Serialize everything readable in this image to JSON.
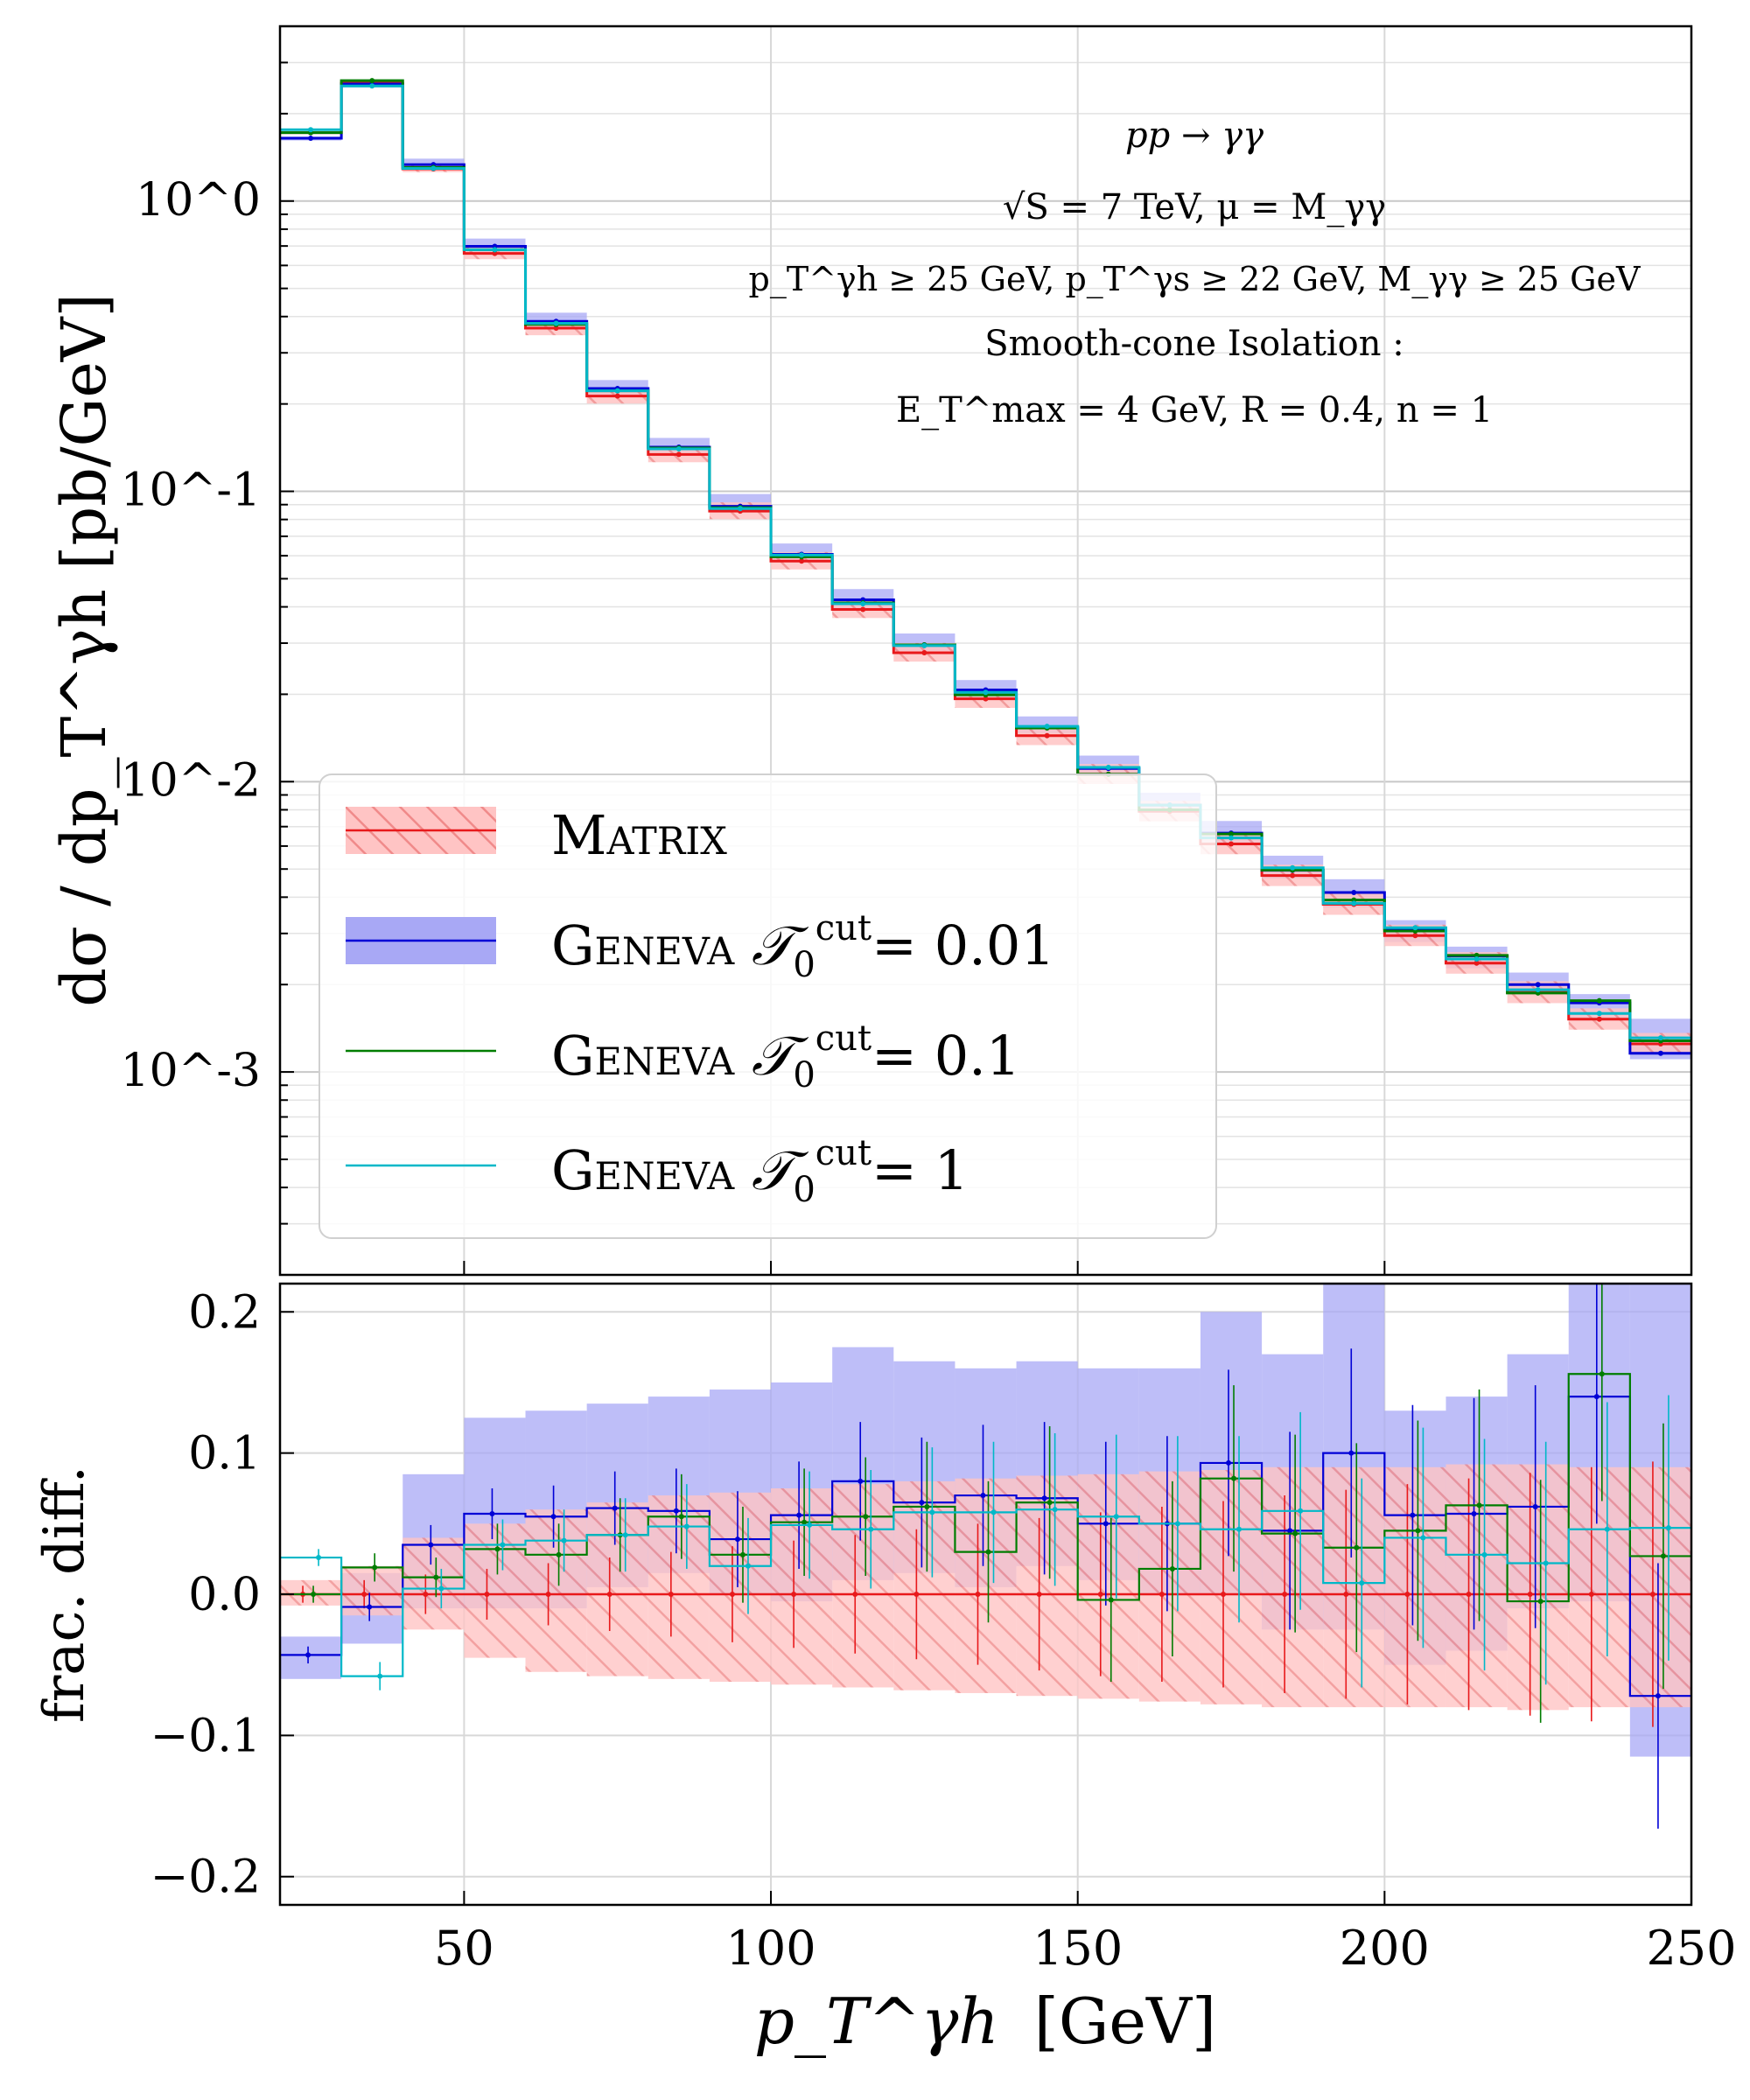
{
  "chart_data": {
    "type": "line",
    "bin_edges": [
      20,
      30,
      40,
      50,
      60,
      70,
      80,
      90,
      100,
      110,
      120,
      130,
      140,
      150,
      160,
      170,
      180,
      190,
      200,
      210,
      220,
      230,
      240,
      250
    ],
    "top_panel": {
      "ylabel": "dσ / dp_T^γh  [pb/GeV]",
      "yscale": "log",
      "ylim": [
        0.0002,
        4.0
      ],
      "y_tick_labels": [
        "10^0",
        "10^-1",
        "10^-2",
        "10^-3"
      ],
      "annotations": [
        "pp → γγ",
        "√S = 7 TeV, μ = M_γγ",
        "p_T^γh ≥ 25 GeV,  p_T^γs ≥ 22 GeV,  M_γγ ≥ 25 GeV",
        "Smooth-cone Isolation :",
        "E_T^max = 4 GeV,  R = 0.4,  n = 1"
      ],
      "legend_position": "lower-left",
      "series": [
        {
          "name": "Matrix",
          "color": "#e8191b",
          "band_color": "#ff8a8a",
          "band_hatched": true,
          "values": [
            1.72,
            2.55,
            1.29,
            0.66,
            0.365,
            0.213,
            0.134,
            0.0855,
            0.0575,
            0.0392,
            0.0278,
            0.0193,
            0.0144,
            0.0106,
            0.0079,
            0.0061,
            0.00475,
            0.00378,
            0.00295,
            0.00237,
            0.00188,
            0.00152,
            0.00125
          ],
          "rel_err_low": [
            0.008,
            0.015,
            0.025,
            0.045,
            0.055,
            0.058,
            0.06,
            0.062,
            0.064,
            0.066,
            0.068,
            0.07,
            0.072,
            0.074,
            0.076,
            0.078,
            0.08,
            0.08,
            0.08,
            0.08,
            0.082,
            0.08,
            0.08
          ],
          "rel_err_high": [
            0.01,
            0.02,
            0.04,
            0.05,
            0.06,
            0.065,
            0.07,
            0.072,
            0.075,
            0.078,
            0.08,
            0.082,
            0.084,
            0.085,
            0.087,
            0.088,
            0.09,
            0.09,
            0.09,
            0.092,
            0.092,
            0.09,
            0.09
          ]
        },
        {
          "name": "Geneva T0cut = 0.01",
          "color": "#0000d6",
          "band_color": "#a8a8f5",
          "values": [
            1.645,
            2.53,
            1.335,
            0.698,
            0.385,
            0.226,
            0.142,
            0.0888,
            0.0607,
            0.0423,
            0.0296,
            0.0207,
            0.0154,
            0.0111,
            0.0083,
            0.00665,
            0.00495,
            0.00415,
            0.00311,
            0.00251,
            0.002,
            0.00173,
            0.00116
          ],
          "band_low": [
            -0.06,
            -0.035,
            -0.01,
            -0.01,
            -0.01,
            0.005,
            0.015,
            0.0,
            -0.005,
            0.01,
            0.015,
            0.005,
            0.02,
            0.01,
            0.0,
            0.0,
            -0.025,
            -0.025,
            -0.05,
            -0.04,
            -0.01,
            -0.005,
            -0.115
          ],
          "band_high": [
            -0.03,
            0.015,
            0.085,
            0.125,
            0.13,
            0.135,
            0.14,
            0.145,
            0.15,
            0.175,
            0.165,
            0.16,
            0.165,
            0.16,
            0.16,
            0.2,
            0.17,
            0.22,
            0.13,
            0.14,
            0.17,
            0.22,
            0.22
          ]
        },
        {
          "name": "Geneva T0cut = 0.1",
          "color": "#007d00",
          "values": [
            1.72,
            2.6,
            1.305,
            0.68,
            0.376,
            0.222,
            0.141,
            0.0878,
            0.0595,
            0.0413,
            0.0296,
            0.0199,
            0.0153,
            0.0106,
            0.008,
            0.0066,
            0.00496,
            0.00391,
            0.00306,
            0.00252,
            0.00187,
            0.00176,
            0.00128
          ]
        },
        {
          "name": "Geneva T0cut = 1",
          "color": "#00b8c8",
          "values": [
            1.76,
            2.49,
            1.295,
            0.68,
            0.379,
            0.222,
            0.14,
            0.0872,
            0.0603,
            0.041,
            0.0294,
            0.0203,
            0.0155,
            0.0112,
            0.0083,
            0.0064,
            0.00505,
            0.00381,
            0.00314,
            0.00245,
            0.00192,
            0.00159,
            0.00131
          ]
        }
      ]
    },
    "bottom_panel": {
      "ylabel": "frac. diff.",
      "ylim": [
        -0.22,
        0.22
      ],
      "y_ticks": [
        -0.2,
        -0.1,
        0.0,
        0.1,
        0.2
      ],
      "series": [
        {
          "name": "Matrix",
          "values": [
            0.0,
            0.0,
            0.0,
            0.0,
            0.0,
            0.0,
            0.0,
            0.0,
            0.0,
            0.0,
            0.0,
            0.0,
            0.0,
            0.0,
            0.0,
            0.0,
            0.0,
            0.0,
            0.0,
            0.0,
            0.0,
            0.0,
            0.0
          ]
        },
        {
          "name": "Geneva T0cut = 0.01",
          "values": [
            -0.043,
            -0.009,
            0.035,
            0.057,
            0.055,
            0.061,
            0.059,
            0.039,
            0.056,
            0.08,
            0.065,
            0.07,
            0.068,
            0.05,
            0.05,
            0.093,
            0.045,
            0.1,
            0.056,
            0.057,
            0.062,
            0.14,
            -0.072
          ]
        },
        {
          "name": "Geneva T0cut = 0.1",
          "values": [
            0.0,
            0.019,
            0.012,
            0.032,
            0.028,
            0.042,
            0.055,
            0.028,
            0.051,
            0.055,
            0.062,
            0.03,
            0.065,
            -0.004,
            0.018,
            0.082,
            0.043,
            0.033,
            0.045,
            0.063,
            -0.005,
            0.156,
            0.027
          ]
        },
        {
          "name": "Geneva T0cut = 1",
          "values": [
            0.026,
            -0.058,
            0.004,
            0.035,
            0.038,
            0.042,
            0.048,
            0.02,
            0.049,
            0.046,
            0.058,
            0.058,
            0.06,
            0.055,
            0.05,
            0.046,
            0.059,
            0.008,
            0.04,
            0.028,
            0.022,
            0.046,
            0.047
          ]
        }
      ]
    },
    "x_axis": {
      "xlabel_main": "p_T^γh",
      "xlabel_unit": "[GeV]",
      "xlim": [
        20,
        250
      ],
      "x_ticks": [
        50,
        100,
        150,
        200,
        250
      ]
    },
    "legend": {
      "entries": [
        {
          "label": "Matrix",
          "suffix": ""
        },
        {
          "label": "Geneva",
          "suffix": "= 0.01"
        },
        {
          "label": "Geneva",
          "suffix": "= 0.1"
        },
        {
          "label": "Geneva",
          "suffix": "= 1"
        }
      ],
      "tau_symbol": "𝒯",
      "tau_sub": "0",
      "tau_sup": "cut"
    },
    "grid": true
  }
}
